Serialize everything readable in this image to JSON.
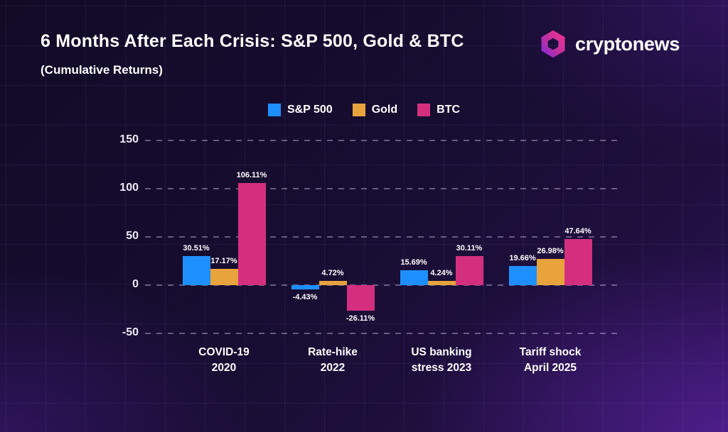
{
  "header": {
    "title": "6 Months After Each Crisis: S&P 500, Gold & BTC",
    "subtitle": "(Cumulative Returns)",
    "brand": "cryptonews"
  },
  "colors": {
    "sp500_blue": "#1E8FFF",
    "gold_orange": "#E8A33D",
    "btc_pink": "#D42F7F",
    "background_dark": "#140C2B",
    "background_purple": "#3E1675",
    "gridline": "rgba(205,200,232,0.42)",
    "text": "#FFFFFF"
  },
  "chart_data": {
    "type": "bar",
    "title": "6 Months After Each Crisis: S&P 500, Gold & BTC",
    "subtitle": "(Cumulative Returns)",
    "unit": "%",
    "categories": [
      [
        "COVID-19",
        "2020"
      ],
      [
        "Rate-hike",
        "2022"
      ],
      [
        "US banking",
        "stress 2023"
      ],
      [
        "Tariff shock",
        "April 2025"
      ]
    ],
    "series": [
      {
        "name": "S&P 500",
        "color": "#1E8FFF",
        "values": [
          30.51,
          -4.43,
          15.69,
          19.66
        ],
        "labels": [
          "30.51%",
          "-4.43%",
          "15.69%",
          "19.66%"
        ]
      },
      {
        "name": "Gold",
        "color": "#E8A33D",
        "values": [
          17.17,
          4.72,
          4.24,
          26.98
        ],
        "labels": [
          "17.17%",
          "4.72%",
          "4.24%",
          "26.98%"
        ]
      },
      {
        "name": "BTC",
        "color": "#D42F7F",
        "values": [
          106.11,
          -26.11,
          30.11,
          47.64
        ],
        "labels": [
          "106.11%",
          "-26.11%",
          "30.11%",
          "47.64%"
        ]
      }
    ],
    "yticks": [
      150,
      100,
      50,
      0,
      -50
    ],
    "ytick_labels": [
      "150",
      "100",
      "50",
      "0",
      "-50"
    ],
    "ylim": [
      -50,
      150
    ],
    "grid": "dashed-horizontal",
    "legend_position": "top-center"
  }
}
